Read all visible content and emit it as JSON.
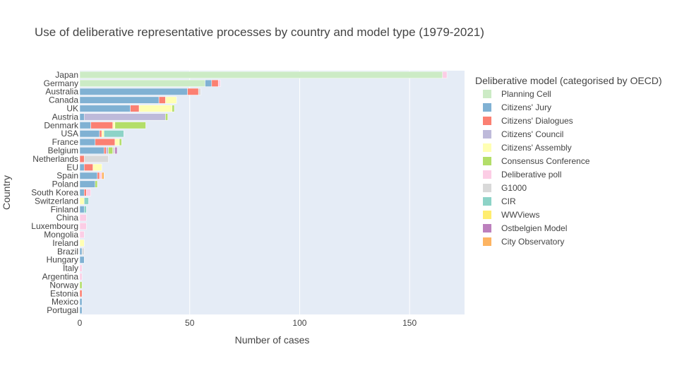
{
  "chart_data": {
    "type": "bar",
    "orientation": "horizontal",
    "barmode": "stack",
    "title": "Use of deliberative representative processes by country and model type (1979-2021)",
    "xlabel": "Number of cases",
    "ylabel": "Country",
    "xlim": [
      0,
      175
    ],
    "xticks": [
      0,
      50,
      100,
      150
    ],
    "grid": true,
    "legend_title": "Deliberative model (categorised by OECD)",
    "legend_position": "right",
    "categories": [
      "Japan",
      "Germany",
      "Australia",
      "Canada",
      "UK",
      "Austria",
      "Denmark",
      "USA",
      "France",
      "Belgium",
      "Netherlands",
      "EU",
      "Spain",
      "Poland",
      "South Korea",
      "Switzerland",
      "Finland",
      "China",
      "Luxembourg",
      "Mongolia",
      "Ireland",
      "Brazil",
      "Hungary",
      "Italy",
      "Argentina",
      "Norway",
      "Estonia",
      "Mexico",
      "Portugal"
    ],
    "series": [
      {
        "name": "Planning Cell",
        "color": "#ccebc5",
        "values": [
          165,
          57,
          0,
          0,
          0,
          0,
          0,
          0,
          0,
          0,
          0,
          0,
          0,
          0,
          0,
          0,
          0,
          0,
          0,
          0,
          0,
          0,
          0,
          0,
          0,
          0,
          0,
          0,
          0
        ]
      },
      {
        "name": "Citizens' Jury",
        "color": "#80b1d3",
        "values": [
          0,
          3,
          49,
          36,
          23,
          2,
          5,
          9,
          7,
          11,
          0,
          2,
          8,
          7,
          2,
          0,
          2,
          0,
          0,
          0,
          0,
          1,
          2,
          0,
          0,
          0,
          0,
          1,
          1
        ]
      },
      {
        "name": "Citizens' Dialogues",
        "color": "#fb8072",
        "values": [
          0,
          3,
          5,
          3,
          4,
          0,
          10,
          1,
          9,
          1,
          2,
          4,
          1,
          0,
          1,
          0,
          0,
          0,
          0,
          0,
          0,
          0,
          0,
          0,
          0,
          0,
          1,
          0,
          0
        ]
      },
      {
        "name": "Citizens' Council",
        "color": "#bebada",
        "values": [
          0,
          0,
          0,
          0,
          0,
          37,
          0,
          0,
          0,
          1,
          0,
          0,
          0,
          0,
          0,
          0,
          0,
          0,
          0,
          0,
          0,
          0,
          0,
          0,
          0,
          0,
          0,
          0,
          0
        ]
      },
      {
        "name": "Citizens' Assembly",
        "color": "#ffffb3",
        "values": [
          0,
          0,
          0,
          5,
          15,
          0,
          1,
          1,
          2,
          0,
          0,
          4,
          0,
          0,
          0,
          2,
          0,
          0,
          0,
          0,
          2,
          0,
          0,
          0,
          0,
          0,
          0,
          0,
          0
        ]
      },
      {
        "name": "Consensus Conference",
        "color": "#b3de69",
        "values": [
          0,
          0,
          0,
          0,
          1,
          1,
          14,
          0,
          1,
          2,
          0,
          0,
          0,
          1,
          0,
          0,
          0,
          0,
          0,
          0,
          0,
          0,
          0,
          0,
          0,
          1,
          0,
          0,
          0
        ]
      },
      {
        "name": "Deliberative poll",
        "color": "#fccde5",
        "values": [
          2,
          1,
          0,
          0,
          0,
          0,
          0,
          0,
          0,
          0,
          0,
          0,
          1,
          0,
          2,
          0,
          0,
          3,
          3,
          2,
          0,
          0,
          0,
          1,
          1,
          0,
          0,
          0,
          0
        ]
      },
      {
        "name": "G1000",
        "color": "#d9d9d9",
        "values": [
          0,
          0,
          1,
          0,
          0,
          0,
          0,
          0,
          0,
          1,
          11,
          0,
          0,
          0,
          0,
          0,
          0,
          0,
          0,
          0,
          0,
          1,
          0,
          0,
          0,
          0,
          0,
          0,
          0
        ]
      },
      {
        "name": "CIR",
        "color": "#8dd3c7",
        "values": [
          0,
          0,
          0,
          0,
          0,
          0,
          0,
          9,
          0,
          0,
          0,
          0,
          0,
          0,
          0,
          2,
          1,
          0,
          0,
          0,
          0,
          0,
          0,
          0,
          0,
          0,
          0,
          0,
          0
        ]
      },
      {
        "name": "WWViews",
        "color": "#ffed6f",
        "values": [
          0,
          0,
          0,
          0,
          0,
          0,
          0,
          0,
          0,
          0,
          0,
          0,
          0,
          0,
          0,
          0,
          0,
          0,
          0,
          0,
          0,
          0,
          0,
          0,
          0,
          0,
          0,
          0,
          0
        ]
      },
      {
        "name": "Ostbelgien Model",
        "color": "#bc80bd",
        "values": [
          0,
          0,
          0,
          0,
          0,
          0,
          0,
          0,
          0,
          1,
          0,
          0,
          0,
          0,
          0,
          0,
          0,
          0,
          0,
          0,
          0,
          0,
          0,
          0,
          0,
          0,
          0,
          0,
          0
        ]
      },
      {
        "name": "City Observatory",
        "color": "#fdb462",
        "values": [
          0,
          0,
          0,
          0,
          0,
          0,
          0,
          0,
          0,
          0,
          0,
          0,
          1,
          0,
          0,
          0,
          0,
          0,
          0,
          0,
          0,
          0,
          0,
          0,
          0,
          0,
          0,
          0,
          0
        ]
      }
    ]
  }
}
